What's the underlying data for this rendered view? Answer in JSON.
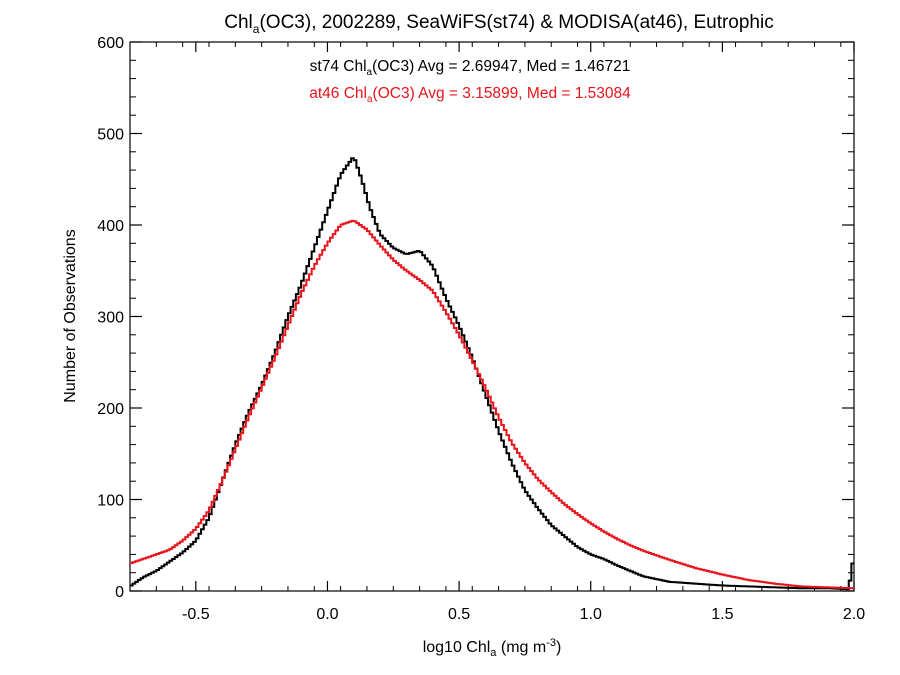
{
  "chart_data": {
    "type": "histogram-step",
    "title": {
      "pre": "Chl",
      "sub": "a",
      "post": "(OC3), 2002289, SeaWiFS(st74) & MODISA(at46), Eutrophic"
    },
    "xlabel": {
      "pre": "log10 Chl",
      "sub": "a",
      "mid": " (mg m",
      "sup": "-3",
      "post": ")"
    },
    "ylabel": "Number of Observations",
    "xlim": [
      -0.75,
      2.0
    ],
    "ylim": [
      0,
      600
    ],
    "xticks": [
      -0.5,
      0.0,
      0.5,
      1.0,
      1.5,
      2.0
    ],
    "xtick_labels": [
      "-0.5",
      "0.0",
      "0.5",
      "1.0",
      "1.5",
      "2.0"
    ],
    "yticks": [
      0,
      100,
      200,
      300,
      400,
      500,
      600
    ],
    "ytick_labels": [
      "0",
      "100",
      "200",
      "300",
      "400",
      "500",
      "600"
    ],
    "annotations": [
      {
        "pre": "st74 Chl",
        "sub": "a",
        "post": "(OC3) Avg = 2.69947, Med = 1.46721",
        "color": "#000000"
      },
      {
        "pre": "at46 Chl",
        "sub": "a",
        "post": "(OC3) Avg = 3.15899, Med = 1.53084",
        "color": "#e8141b"
      }
    ],
    "grid": false,
    "series": [
      {
        "name": "st74",
        "color": "#000000",
        "points": [
          [
            -0.75,
            5
          ],
          [
            -0.7,
            15
          ],
          [
            -0.65,
            22
          ],
          [
            -0.6,
            32
          ],
          [
            -0.55,
            42
          ],
          [
            -0.5,
            55
          ],
          [
            -0.45,
            80
          ],
          [
            -0.4,
            120
          ],
          [
            -0.35,
            160
          ],
          [
            -0.3,
            195
          ],
          [
            -0.25,
            225
          ],
          [
            -0.2,
            260
          ],
          [
            -0.15,
            300
          ],
          [
            -0.1,
            335
          ],
          [
            -0.05,
            375
          ],
          [
            0.0,
            415
          ],
          [
            0.05,
            455
          ],
          [
            0.1,
            475
          ],
          [
            0.13,
            450
          ],
          [
            0.16,
            420
          ],
          [
            0.2,
            390
          ],
          [
            0.25,
            375
          ],
          [
            0.3,
            368
          ],
          [
            0.35,
            372
          ],
          [
            0.4,
            355
          ],
          [
            0.45,
            320
          ],
          [
            0.5,
            290
          ],
          [
            0.55,
            255
          ],
          [
            0.6,
            215
          ],
          [
            0.65,
            175
          ],
          [
            0.7,
            140
          ],
          [
            0.75,
            110
          ],
          [
            0.8,
            90
          ],
          [
            0.85,
            72
          ],
          [
            0.9,
            60
          ],
          [
            0.95,
            48
          ],
          [
            1.0,
            40
          ],
          [
            1.05,
            35
          ],
          [
            1.1,
            28
          ],
          [
            1.15,
            22
          ],
          [
            1.2,
            16
          ],
          [
            1.3,
            10
          ],
          [
            1.4,
            8
          ],
          [
            1.5,
            6
          ],
          [
            1.6,
            5
          ],
          [
            1.7,
            4
          ],
          [
            1.8,
            3
          ],
          [
            1.9,
            3
          ],
          [
            1.98,
            2
          ],
          [
            1.995,
            30
          ],
          [
            2.0,
            30
          ]
        ]
      },
      {
        "name": "at46",
        "color": "#e8141b",
        "points": [
          [
            -0.75,
            30
          ],
          [
            -0.7,
            35
          ],
          [
            -0.65,
            40
          ],
          [
            -0.6,
            45
          ],
          [
            -0.55,
            55
          ],
          [
            -0.5,
            68
          ],
          [
            -0.45,
            88
          ],
          [
            -0.4,
            120
          ],
          [
            -0.35,
            155
          ],
          [
            -0.3,
            190
          ],
          [
            -0.25,
            222
          ],
          [
            -0.2,
            255
          ],
          [
            -0.15,
            290
          ],
          [
            -0.1,
            325
          ],
          [
            -0.05,
            355
          ],
          [
            0.0,
            380
          ],
          [
            0.05,
            400
          ],
          [
            0.1,
            405
          ],
          [
            0.15,
            395
          ],
          [
            0.2,
            378
          ],
          [
            0.25,
            362
          ],
          [
            0.3,
            350
          ],
          [
            0.35,
            340
          ],
          [
            0.4,
            328
          ],
          [
            0.45,
            305
          ],
          [
            0.5,
            280
          ],
          [
            0.55,
            252
          ],
          [
            0.6,
            222
          ],
          [
            0.65,
            190
          ],
          [
            0.7,
            162
          ],
          [
            0.75,
            140
          ],
          [
            0.8,
            122
          ],
          [
            0.85,
            108
          ],
          [
            0.9,
            95
          ],
          [
            0.95,
            84
          ],
          [
            1.0,
            74
          ],
          [
            1.05,
            65
          ],
          [
            1.1,
            57
          ],
          [
            1.15,
            50
          ],
          [
            1.2,
            44
          ],
          [
            1.3,
            34
          ],
          [
            1.4,
            25
          ],
          [
            1.5,
            18
          ],
          [
            1.6,
            12
          ],
          [
            1.7,
            8
          ],
          [
            1.8,
            5
          ],
          [
            1.9,
            4
          ],
          [
            2.0,
            3
          ]
        ]
      }
    ]
  }
}
